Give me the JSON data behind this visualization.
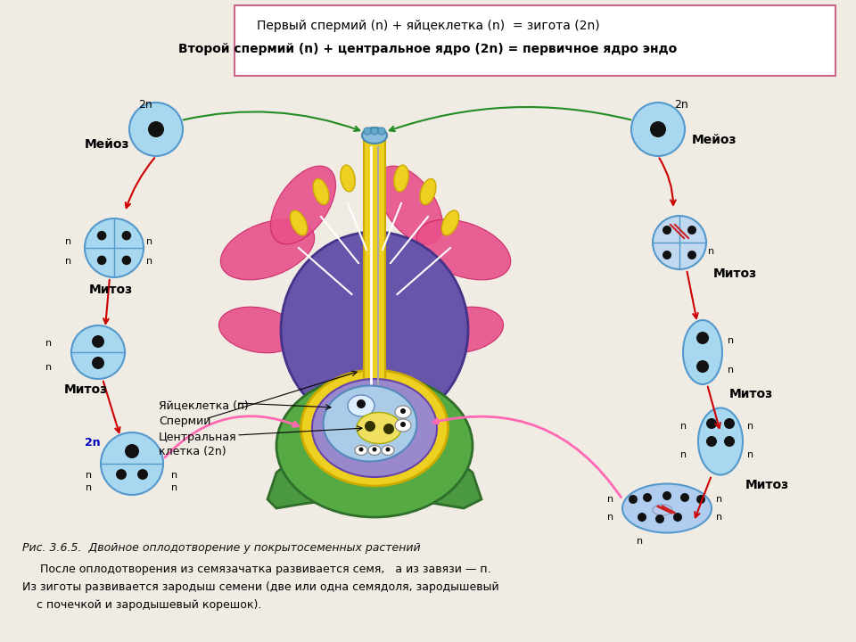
{
  "bg_color": "#f0ece4",
  "title_line1": "Первый спермий (n) + яйцеклетка (n)  = зигота (2n)",
  "title_line2": "Второй спермий (n) + центральное ядро (2n) = первичное ядро эндо",
  "caption": "Рис. 3.6.5.  Двойное оплодотворение у покрытосеменных растений",
  "text_bottom1": "     После оплодотворения из семязачатка развивается семя,   а из завязи — п.",
  "text_bottom2": "Из зиготы развивается зародыш семени (две или одна семядоля, зародышевый",
  "text_bottom3": "    с почечкой и зародышевый корешок).",
  "arrow_color": "#CC0000",
  "green_arrow": "#228B22",
  "pink_arrow": "#FF69B4",
  "cell_face": "#A8D8F0",
  "cell_edge": "#5599CC",
  "cell_face_light": "#C8E8FF",
  "nuc_color": "#111111"
}
